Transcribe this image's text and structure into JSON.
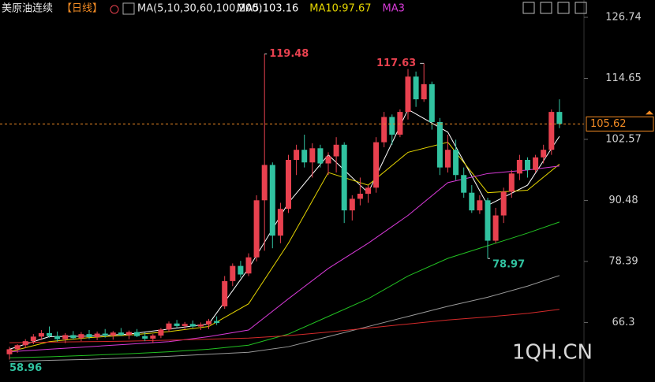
{
  "chart_data": {
    "type": "candlestick",
    "header": {
      "symbol": "美原油连续",
      "period": "【日线】",
      "ma_params": "MA(5,10,30,60,100,200)"
    },
    "indicators": [
      {
        "label": "MA5:103.16",
        "color": "#ffffff"
      },
      {
        "label": "MA10:97.67",
        "color": "#e6d600"
      },
      {
        "label": "MA3",
        "color": "#d83ad8"
      }
    ],
    "watermark": "1QH.CN",
    "up_color": "#e8414f",
    "down_color": "#31c2a0",
    "open": [
      60.0,
      61.0,
      61.8,
      62.6,
      63.5,
      64.2,
      63.6,
      63.0,
      63.8,
      63.2,
      64.0,
      63.4,
      64.1,
      63.7,
      64.3,
      63.8,
      64.4,
      63.6,
      63.1,
      63.7,
      64.9,
      66.1,
      65.6,
      66.0,
      65.5,
      65.9,
      66.6,
      69.5,
      74.5,
      77.5,
      76.0,
      79.2,
      90.5,
      97.5,
      83.5,
      88.8,
      98.5,
      100.5,
      98.0,
      100.8,
      97.8,
      99.2,
      101.5,
      88.5,
      90.8,
      91.8,
      93.0,
      102.0,
      107.0,
      103.5,
      108.0,
      115.0,
      110.5,
      113.5,
      106.0,
      97.0,
      100.5,
      95.5,
      92.0,
      88.5,
      90.5,
      82.5,
      87.5,
      92.2,
      95.8,
      98.5,
      96.5,
      99.0,
      100.5,
      108.0
    ],
    "high": [
      61.5,
      62.0,
      63.0,
      64.0,
      64.8,
      65.5,
      64.5,
      64.2,
      64.6,
      64.4,
      64.8,
      64.5,
      65.0,
      64.6,
      65.2,
      64.7,
      65.0,
      64.3,
      64.0,
      65.2,
      66.5,
      66.8,
      66.4,
      66.7,
      66.3,
      67.0,
      67.5,
      75.5,
      78.0,
      78.5,
      80.0,
      91.5,
      119.48,
      98.0,
      90.0,
      99.5,
      101.5,
      103.5,
      101.8,
      101.5,
      100.0,
      103.0,
      102.0,
      91.5,
      95.0,
      93.5,
      103.0,
      108.0,
      107.5,
      108.5,
      116.5,
      116.0,
      117.63,
      114.0,
      106.8,
      103.5,
      102.5,
      97.0,
      93.5,
      91.5,
      91.0,
      89.0,
      93.0,
      96.5,
      99.5,
      99.0,
      99.5,
      101.5,
      108.5,
      110.5
    ],
    "low": [
      58.96,
      60.3,
      61.2,
      62.0,
      62.8,
      63.3,
      62.5,
      62.2,
      62.9,
      62.6,
      63.0,
      62.8,
      63.3,
      62.9,
      63.6,
      63.0,
      63.4,
      62.6,
      62.2,
      63.2,
      64.4,
      65.2,
      64.9,
      65.2,
      64.8,
      65.0,
      65.8,
      69.0,
      73.5,
      75.2,
      75.5,
      78.4,
      80.5,
      81.0,
      82.0,
      88.0,
      95.5,
      97.0,
      95.0,
      97.0,
      95.5,
      96.0,
      86.0,
      86.5,
      89.5,
      90.0,
      92.0,
      101.0,
      101.5,
      103.0,
      106.5,
      109.0,
      110.0,
      104.5,
      95.5,
      96.0,
      94.5,
      91.0,
      88.0,
      87.8,
      78.97,
      82.0,
      86.0,
      91.0,
      94.5,
      95.0,
      96.0,
      97.8,
      99.5,
      104.8
    ],
    "close": [
      61.0,
      61.8,
      62.6,
      63.5,
      64.2,
      63.6,
      63.0,
      63.8,
      63.2,
      64.0,
      63.4,
      64.1,
      63.7,
      64.3,
      63.8,
      64.4,
      63.6,
      63.1,
      63.7,
      64.9,
      66.1,
      65.6,
      66.0,
      65.5,
      65.9,
      66.6,
      66.2,
      74.5,
      77.5,
      75.8,
      79.2,
      90.5,
      97.5,
      83.5,
      88.8,
      98.5,
      100.5,
      98.0,
      100.8,
      97.8,
      99.2,
      101.5,
      88.5,
      90.8,
      91.8,
      93.0,
      102.0,
      107.0,
      103.5,
      108.0,
      115.0,
      110.5,
      113.5,
      106.0,
      97.0,
      100.5,
      95.5,
      92.0,
      88.5,
      90.5,
      82.5,
      87.5,
      92.2,
      95.8,
      98.5,
      96.5,
      99.0,
      100.5,
      108.0,
      105.62
    ],
    "ma_lines": [
      {
        "color": "#ffffff",
        "x": [
          0,
          5,
          10,
          15,
          20,
          25,
          30,
          35,
          40,
          45,
          50,
          55,
          60,
          65,
          69
        ],
        "values": [
          61,
          63.5,
          63.6,
          64,
          65,
          66,
          77,
          90,
          99.5,
          92,
          108.5,
          104,
          89.5,
          93.5,
          103.16
        ]
      },
      {
        "color": "#e6d600",
        "x": [
          0,
          5,
          10,
          15,
          20,
          25,
          30,
          35,
          40,
          45,
          50,
          55,
          60,
          65,
          69
        ],
        "values": [
          60.5,
          62.5,
          63.3,
          63.8,
          64.5,
          65.5,
          70,
          82,
          96,
          93.5,
          100,
          102,
          92,
          92.5,
          97.67
        ]
      },
      {
        "color": "#d83ad8",
        "x": [
          0,
          5,
          10,
          15,
          20,
          25,
          30,
          35,
          40,
          45,
          50,
          55,
          60,
          65,
          69
        ],
        "values": [
          60.5,
          61,
          61.5,
          62,
          62.5,
          63.5,
          64.8,
          71,
          77,
          82,
          87.5,
          94,
          95.8,
          96.5,
          97.3
        ]
      },
      {
        "color": "#22c022",
        "x": [
          0,
          5,
          10,
          15,
          20,
          25,
          30,
          35,
          40,
          45,
          50,
          55,
          60,
          65,
          69
        ],
        "values": [
          59.3,
          59.5,
          59.8,
          60.1,
          60.5,
          61,
          61.8,
          64,
          67.5,
          71,
          75.5,
          79,
          81.5,
          84,
          86.2
        ]
      },
      {
        "color": "#9a9a9a",
        "x": [
          0,
          5,
          10,
          15,
          20,
          25,
          30,
          35,
          40,
          45,
          50,
          55,
          60,
          65,
          69
        ],
        "values": [
          58.6,
          58.8,
          59,
          59.3,
          59.6,
          60,
          60.4,
          61.5,
          63.5,
          65.5,
          67.5,
          69.5,
          71.3,
          73.5,
          75.6
        ]
      },
      {
        "color": "#d42a2a",
        "x": [
          0,
          5,
          10,
          15,
          20,
          25,
          30,
          35,
          40,
          45,
          50,
          55,
          60,
          65,
          69
        ],
        "values": [
          62.3,
          62.4,
          62.5,
          62.6,
          62.8,
          63,
          63.2,
          63.7,
          64.4,
          65.2,
          66,
          66.8,
          67.4,
          68.1,
          68.9
        ]
      }
    ],
    "ylim": [
      54.51,
      130.17
    ],
    "yticks": [
      66.3,
      78.39,
      90.48,
      102.57,
      114.65,
      126.74
    ]
  }
}
